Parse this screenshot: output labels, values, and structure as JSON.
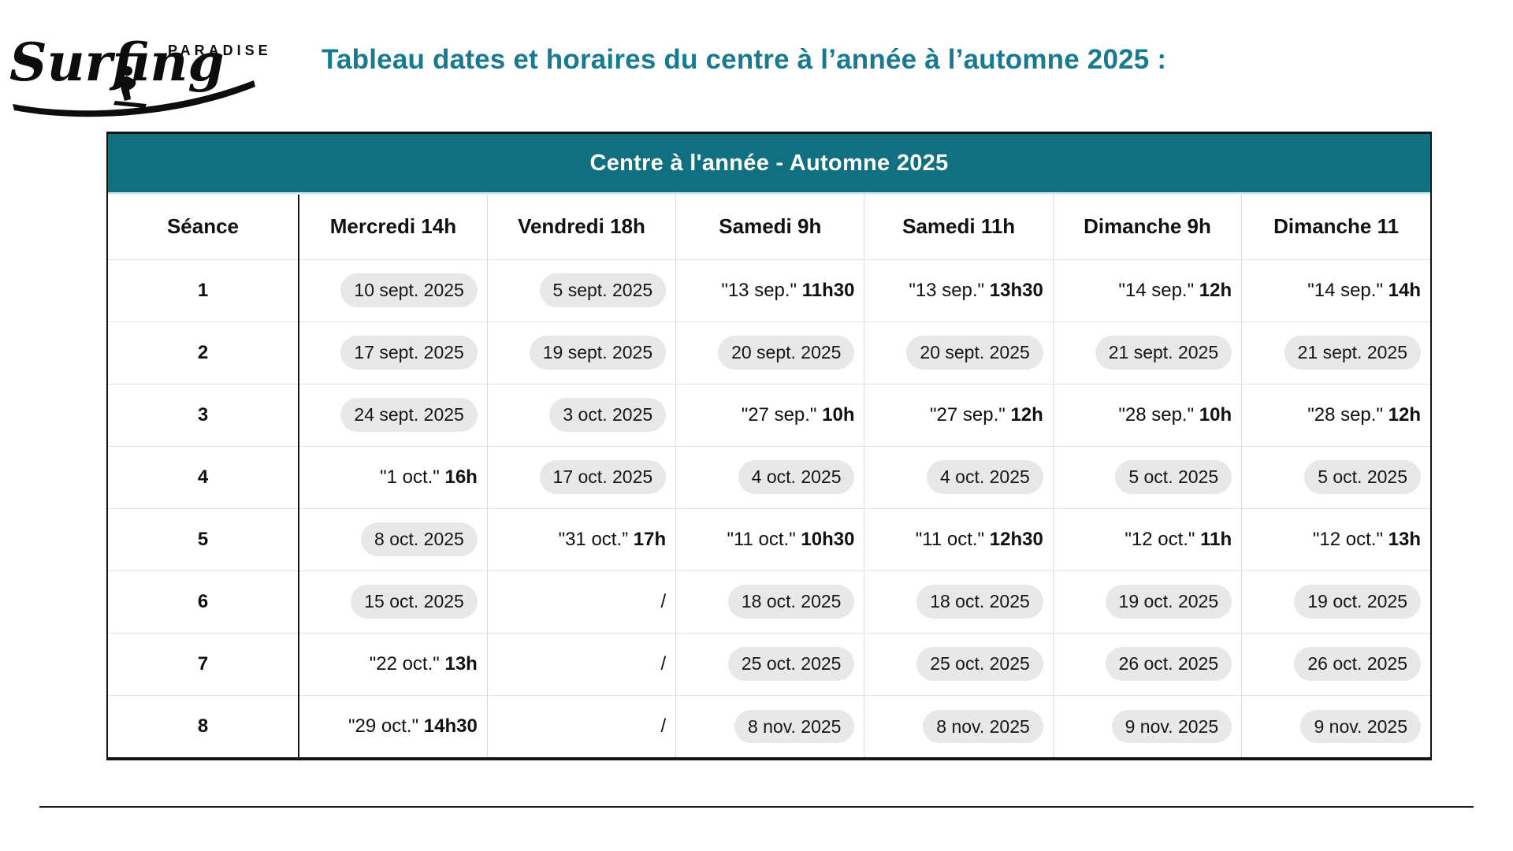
{
  "logo": {
    "brand_script": "Surfing",
    "brand_caps": "PARADISE"
  },
  "page_title": "Tableau dates et horaires du centre à l’année à l’automne 2025 :",
  "colors": {
    "band_teal": "#11707f",
    "title_teal": "#187a90",
    "pill_bg": "#e8e8e8",
    "border_black": "#141414"
  },
  "table": {
    "title": "Centre à l'année - Automne 2025",
    "columns": [
      "Séance",
      "Mercredi 14h",
      "Vendredi 18h",
      "Samedi 9h",
      "Samedi 11h",
      "Dimanche 9h",
      "Dimanche 11"
    ],
    "rows": [
      {
        "seance": "1",
        "cells": [
          {
            "type": "pill",
            "text": "10 sept. 2025"
          },
          {
            "type": "pill",
            "text": "5 sept. 2025"
          },
          {
            "type": "quoted",
            "date": "\"13 sep.\"",
            "time": "11h30"
          },
          {
            "type": "quoted",
            "date": "\"13 sep.\"",
            "time": "13h30"
          },
          {
            "type": "quoted",
            "date": "\"14 sep.\"",
            "time": "12h"
          },
          {
            "type": "quoted",
            "date": "\"14 sep.\"",
            "time": "14h"
          }
        ]
      },
      {
        "seance": "2",
        "cells": [
          {
            "type": "pill",
            "text": "17 sept. 2025"
          },
          {
            "type": "pill",
            "text": "19 sept. 2025"
          },
          {
            "type": "pill",
            "text": "20 sept. 2025"
          },
          {
            "type": "pill",
            "text": "20 sept. 2025"
          },
          {
            "type": "pill",
            "text": "21 sept. 2025"
          },
          {
            "type": "pill",
            "text": "21 sept. 2025"
          }
        ]
      },
      {
        "seance": "3",
        "cells": [
          {
            "type": "pill",
            "text": "24 sept. 2025"
          },
          {
            "type": "pill",
            "text": "3 oct. 2025"
          },
          {
            "type": "quoted",
            "date": "\"27 sep.\"",
            "time": "10h"
          },
          {
            "type": "quoted",
            "date": "\"27 sep.\"",
            "time": "12h"
          },
          {
            "type": "quoted",
            "date": "\"28 sep.\"",
            "time": "10h"
          },
          {
            "type": "quoted",
            "date": "\"28 sep.\"",
            "time": "12h"
          }
        ]
      },
      {
        "seance": "4",
        "cells": [
          {
            "type": "quoted",
            "date": "\"1 oct.\"",
            "time": "16h"
          },
          {
            "type": "pill",
            "text": "17 oct. 2025"
          },
          {
            "type": "pill",
            "text": "4 oct. 2025"
          },
          {
            "type": "pill",
            "text": "4 oct. 2025"
          },
          {
            "type": "pill",
            "text": "5 oct. 2025"
          },
          {
            "type": "pill",
            "text": "5 oct. 2025"
          }
        ]
      },
      {
        "seance": "5",
        "cells": [
          {
            "type": "pill",
            "text": "8 oct. 2025"
          },
          {
            "type": "quoted",
            "date": "\"31 oct.”",
            "time": "17h"
          },
          {
            "type": "quoted",
            "date": "\"11 oct.\"",
            "time": "10h30"
          },
          {
            "type": "quoted",
            "date": "\"11 oct.\"",
            "time": "12h30"
          },
          {
            "type": "quoted",
            "date": "\"12 oct.\"",
            "time": "11h"
          },
          {
            "type": "quoted",
            "date": "\"12 oct.\"",
            "time": "13h"
          }
        ]
      },
      {
        "seance": "6",
        "cells": [
          {
            "type": "pill",
            "text": "15 oct. 2025"
          },
          {
            "type": "slash",
            "text": "/"
          },
          {
            "type": "pill",
            "text": "18 oct. 2025"
          },
          {
            "type": "pill",
            "text": "18 oct. 2025"
          },
          {
            "type": "pill",
            "text": "19 oct. 2025"
          },
          {
            "type": "pill",
            "text": "19 oct. 2025"
          }
        ]
      },
      {
        "seance": "7",
        "cells": [
          {
            "type": "quoted",
            "date": "\"22 oct.\"",
            "time": "13h"
          },
          {
            "type": "slash",
            "text": "/"
          },
          {
            "type": "pill",
            "text": "25 oct. 2025"
          },
          {
            "type": "pill",
            "text": "25 oct. 2025"
          },
          {
            "type": "pill",
            "text": "26 oct. 2025"
          },
          {
            "type": "pill",
            "text": "26 oct. 2025"
          }
        ]
      },
      {
        "seance": "8",
        "cells": [
          {
            "type": "quoted",
            "date": "\"29 oct.\"",
            "time": "14h30"
          },
          {
            "type": "slash",
            "text": "/"
          },
          {
            "type": "pill",
            "text": "8 nov. 2025"
          },
          {
            "type": "pill",
            "text": "8 nov. 2025"
          },
          {
            "type": "pill",
            "text": "9 nov. 2025"
          },
          {
            "type": "pill",
            "text": "9 nov. 2025"
          }
        ]
      }
    ]
  }
}
